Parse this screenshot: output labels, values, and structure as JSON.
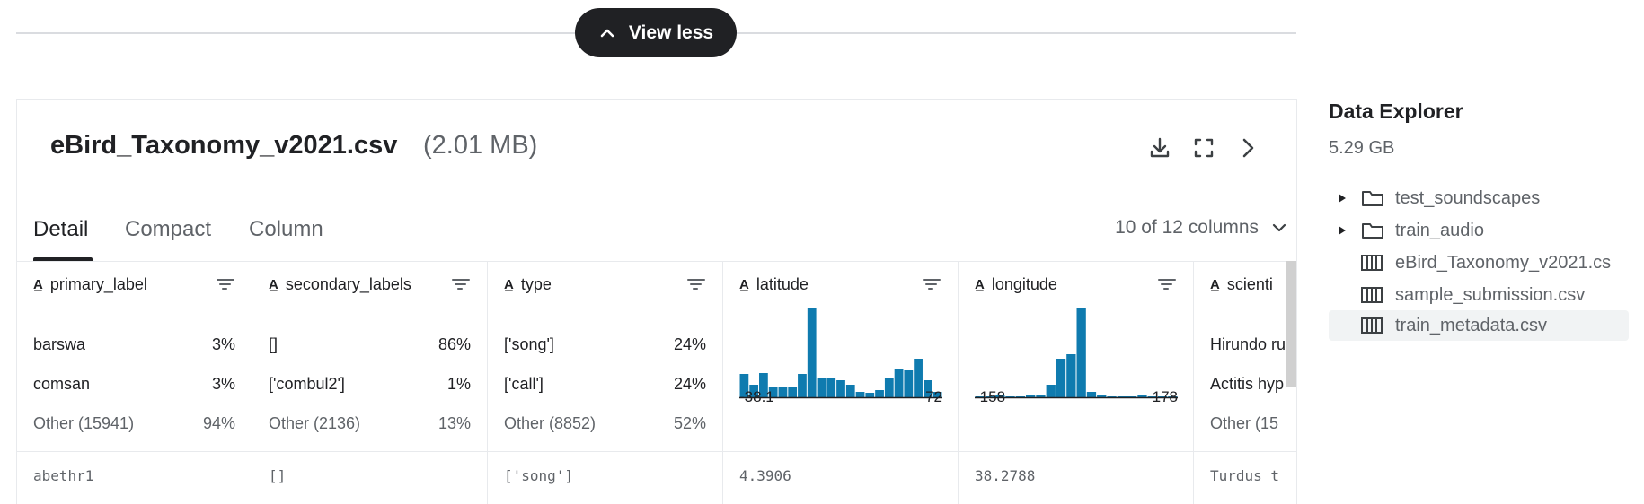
{
  "view_less": {
    "label": "View less"
  },
  "file": {
    "name": "eBird_Taxonomy_v2021.csv",
    "size": "(2.01 MB)"
  },
  "tabs": [
    "Detail",
    "Compact",
    "Column"
  ],
  "column_count": "10 of 12 columns",
  "columns": [
    {
      "name": "primary_label",
      "stats": [
        [
          "barswa",
          "3%"
        ],
        [
          "comsan",
          "3%"
        ],
        [
          "Other (15941)",
          "94%"
        ]
      ],
      "value": "abethr1"
    },
    {
      "name": "secondary_labels",
      "stats": [
        [
          "[]",
          "86%"
        ],
        [
          "['combul2']",
          "1%"
        ],
        [
          "Other (2136)",
          "13%"
        ]
      ],
      "value": "[]"
    },
    {
      "name": "type",
      "stats": [
        [
          "['song']",
          "24%"
        ],
        [
          "['call']",
          "24%"
        ],
        [
          "Other (8852)",
          "52%"
        ]
      ],
      "value": "['song']"
    },
    {
      "name": "latitude",
      "histogram": {
        "min": "-38.1",
        "max": "72"
      },
      "value": "4.3906"
    },
    {
      "name": "longitude",
      "histogram": {
        "min": "-158",
        "max": "178"
      },
      "value": "38.2788"
    },
    {
      "name": "scienti",
      "stats": [
        [
          "Hirundo ru",
          ""
        ],
        [
          "Actitis hyp",
          ""
        ],
        [
          "Other (15",
          ""
        ]
      ],
      "value": "Turdus t"
    }
  ],
  "histograms": {
    "latitude": [
      0.26,
      0.14,
      0.27,
      0.12,
      0.12,
      0.12,
      0.26,
      1.0,
      0.22,
      0.21,
      0.19,
      0.14,
      0.06,
      0.05,
      0.08,
      0.22,
      0.32,
      0.3,
      0.43,
      0.19,
      0.06
    ],
    "longitude": [
      0.01,
      0.01,
      0.02,
      0.01,
      0.01,
      0.02,
      0.02,
      0.14,
      0.43,
      0.48,
      1.0,
      0.06,
      0.02,
      0.01,
      0.01,
      0.01,
      0.02,
      0.01,
      0.01,
      0.01
    ],
    "color": "#0f7baf"
  },
  "sidebar": {
    "title": "Data Explorer",
    "size": "5.29 GB",
    "items": [
      {
        "label": "test_soundscapes",
        "kind": "folder"
      },
      {
        "label": "train_audio",
        "kind": "folder"
      },
      {
        "label": "eBird_Taxonomy_v2021.cs",
        "kind": "table"
      },
      {
        "label": "sample_submission.csv",
        "kind": "table"
      },
      {
        "label": "train_metadata.csv",
        "kind": "table"
      }
    ]
  }
}
